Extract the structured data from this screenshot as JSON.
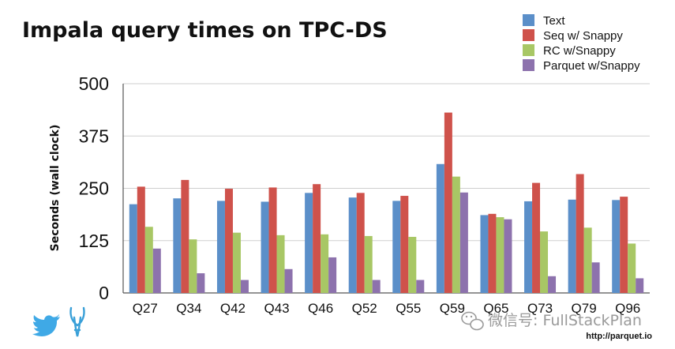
{
  "chart_data": {
    "type": "bar",
    "title": "Impala query times on TPC-DS",
    "ylabel": "Seconds (wall clock)",
    "xlabel": "",
    "ylim": [
      0,
      500
    ],
    "yticks": [
      0,
      125,
      250,
      375,
      500
    ],
    "grid": true,
    "legend_position": "top-right",
    "categories": [
      "Q27",
      "Q34",
      "Q42",
      "Q43",
      "Q46",
      "Q52",
      "Q55",
      "Q59",
      "Q65",
      "Q73",
      "Q79",
      "Q96"
    ],
    "series": [
      {
        "name": "Text",
        "color": "#5b8fc9",
        "values": [
          212,
          226,
          220,
          218,
          239,
          228,
          220,
          308,
          186,
          219,
          223,
          222
        ]
      },
      {
        "name": "Seq w/ Snappy",
        "color": "#cf524b",
        "values": [
          254,
          270,
          249,
          252,
          260,
          239,
          232,
          431,
          189,
          263,
          284,
          230
        ]
      },
      {
        "name": "RC w/Snappy",
        "color": "#a8c765",
        "values": [
          158,
          128,
          144,
          138,
          140,
          136,
          134,
          278,
          181,
          147,
          156,
          118
        ]
      },
      {
        "name": "Parquet w/Snappy",
        "color": "#8d72ad",
        "values": [
          106,
          47,
          31,
          57,
          85,
          31,
          31,
          240,
          176,
          40,
          73,
          35
        ]
      }
    ]
  },
  "footer": {
    "url": "http://parquet.io",
    "watermark": "微信号: FullStackPlan"
  },
  "icons": {
    "twitter": "twitter-bird-icon",
    "logo": "antelope-logo-icon",
    "wechat": "wechat-icon"
  }
}
